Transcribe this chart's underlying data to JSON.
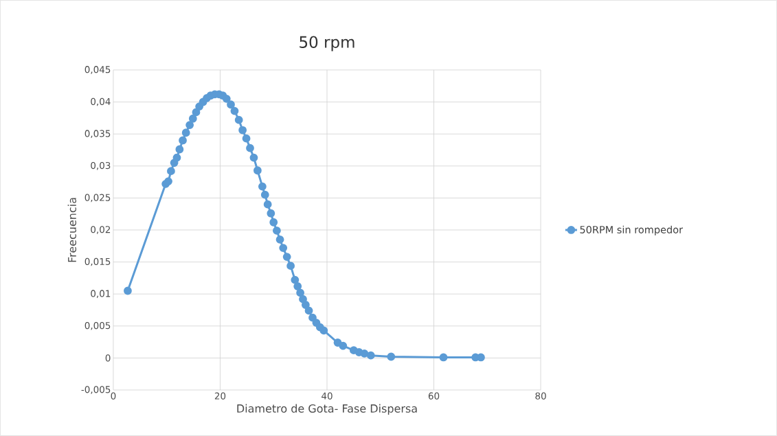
{
  "chart_data": {
    "type": "line",
    "title": "50 rpm",
    "xlabel": "Diametro de Gota- Fase Dispersa",
    "ylabel": "Freecuencia",
    "xlim": [
      0,
      80
    ],
    "xticks": [
      0,
      20,
      40,
      60,
      80
    ],
    "ylim": [
      -0.005,
      0.045
    ],
    "yticks": [
      {
        "value": -0.005,
        "label": "-0,005"
      },
      {
        "value": 0,
        "label": "0"
      },
      {
        "value": 0.005,
        "label": "0,005"
      },
      {
        "value": 0.01,
        "label": "0,01"
      },
      {
        "value": 0.015,
        "label": "0,015"
      },
      {
        "value": 0.02,
        "label": "0,02"
      },
      {
        "value": 0.025,
        "label": "0,025"
      },
      {
        "value": 0.03,
        "label": "0,03"
      },
      {
        "value": 0.035,
        "label": "0,035"
      },
      {
        "value": 0.04,
        "label": "0,04"
      },
      {
        "value": 0.045,
        "label": "0,045"
      }
    ],
    "grid": true,
    "legend": "right",
    "marker": "circle",
    "line_style": "solid",
    "series": [
      {
        "name": "50RPM sin rompedor",
        "color": "#5b9bd5",
        "x": [
          2.7,
          9.8,
          10.3,
          10.8,
          11.4,
          11.9,
          12.4,
          13.0,
          13.6,
          14.3,
          14.9,
          15.5,
          16.1,
          16.8,
          17.5,
          18.2,
          19.0,
          19.8,
          20.5,
          21.2,
          22.0,
          22.7,
          23.5,
          24.2,
          24.9,
          25.6,
          26.3,
          27.0,
          27.9,
          28.4,
          28.9,
          29.5,
          30.0,
          30.6,
          31.2,
          31.8,
          32.5,
          33.2,
          34.0,
          34.5,
          35.0,
          35.5,
          36.0,
          36.6,
          37.3,
          38.0,
          38.7,
          39.4,
          42.0,
          43.0,
          45.0,
          46.0,
          47.0,
          48.2,
          52.0,
          61.8,
          67.8,
          68.8
        ],
        "values": [
          0.0105,
          0.0272,
          0.0276,
          0.0292,
          0.0305,
          0.0313,
          0.0326,
          0.034,
          0.0352,
          0.0364,
          0.0374,
          0.0384,
          0.0393,
          0.04,
          0.0406,
          0.041,
          0.0412,
          0.0412,
          0.041,
          0.0405,
          0.0396,
          0.0386,
          0.0372,
          0.0356,
          0.0343,
          0.0328,
          0.0313,
          0.0293,
          0.0268,
          0.0255,
          0.024,
          0.0226,
          0.0212,
          0.0199,
          0.0185,
          0.0172,
          0.0158,
          0.0144,
          0.0122,
          0.0112,
          0.0102,
          0.0092,
          0.0083,
          0.0074,
          0.0063,
          0.0055,
          0.0048,
          0.0043,
          0.0024,
          0.0019,
          0.0012,
          0.0009,
          0.0007,
          0.0004,
          0.0002,
          0.0001,
          0.0001,
          0.0001
        ]
      }
    ]
  }
}
